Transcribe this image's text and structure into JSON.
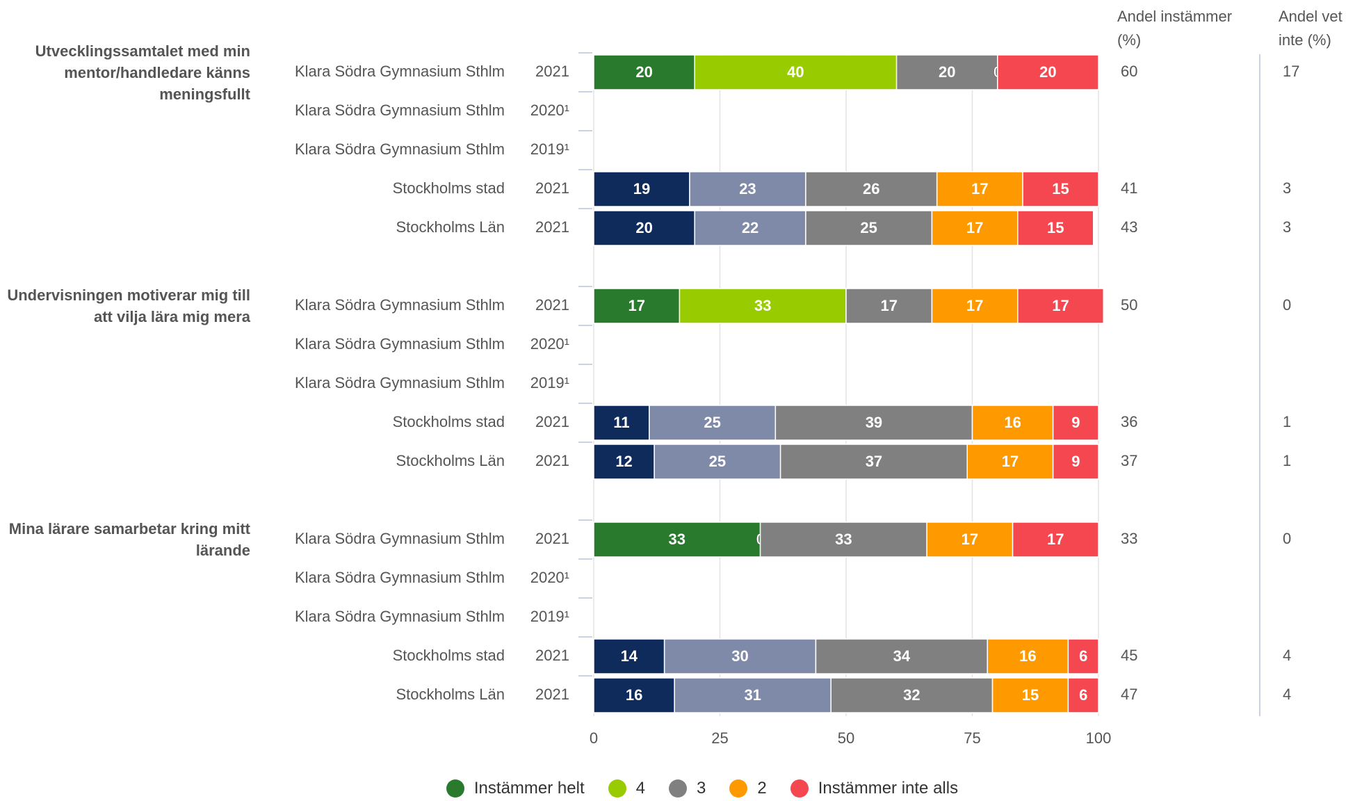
{
  "chart_data": {
    "type": "stacked_bar_horizontal",
    "xlim": [
      0,
      100
    ],
    "xticks": [
      0,
      25,
      50,
      75,
      100
    ],
    "grid": true,
    "legend": "bottom",
    "column_headers": [
      "Andel instämmer (%)",
      "Andel vet inte (%)"
    ],
    "series": [
      {
        "name": "Instämmer helt",
        "color": "#2a7a2e"
      },
      {
        "name": "4",
        "color": "#99cc00"
      },
      {
        "name": "3",
        "color": "#808080"
      },
      {
        "name": "2",
        "color": "#ff9900"
      },
      {
        "name": "Instämmer inte alls",
        "color": "#f5474f"
      }
    ],
    "groups": [
      {
        "label": "Utvecklingssamtalet med min mentor/handledare känns meningsfullt",
        "rows": [
          {
            "name": "Klara Södra Gymnasium Sthlm",
            "year": "2021",
            "values": [
              20,
              40,
              20,
              0,
              20
            ],
            "colors": [
              "#2a7a2e",
              "#99cc00",
              "#808080",
              "#ff9900",
              "#f5474f"
            ],
            "andel_instammer": 60,
            "andel_vet_inte": 17
          },
          {
            "name": "Klara Södra Gymnasium Sthlm",
            "year": "2020¹",
            "values": [
              null,
              null,
              null,
              null,
              null
            ]
          },
          {
            "name": "Klara Södra Gymnasium Sthlm",
            "year": "2019¹",
            "values": [
              null,
              null,
              null,
              null,
              null
            ]
          },
          {
            "name": "Stockholms stad",
            "year": "2021",
            "values": [
              19,
              23,
              26,
              17,
              15
            ],
            "colors": [
              "#0e2b5c",
              "#7f8aa8",
              "#808080",
              "#ff9900",
              "#f5474f"
            ],
            "andel_instammer": 41,
            "andel_vet_inte": 3
          },
          {
            "name": "Stockholms Län",
            "year": "2021",
            "values": [
              20,
              22,
              25,
              17,
              15
            ],
            "colors": [
              "#0e2b5c",
              "#7f8aa8",
              "#808080",
              "#ff9900",
              "#f5474f"
            ],
            "andel_instammer": 43,
            "andel_vet_inte": 3
          }
        ]
      },
      {
        "label": "Undervisningen motiverar mig till att vilja lära mig mera",
        "rows": [
          {
            "name": "Klara Södra Gymnasium Sthlm",
            "year": "2021",
            "values": [
              17,
              33,
              17,
              17,
              17
            ],
            "colors": [
              "#2a7a2e",
              "#99cc00",
              "#808080",
              "#ff9900",
              "#f5474f"
            ],
            "andel_instammer": 50,
            "andel_vet_inte": 0
          },
          {
            "name": "Klara Södra Gymnasium Sthlm",
            "year": "2020¹",
            "values": [
              null,
              null,
              null,
              null,
              null
            ]
          },
          {
            "name": "Klara Södra Gymnasium Sthlm",
            "year": "2019¹",
            "values": [
              null,
              null,
              null,
              null,
              null
            ]
          },
          {
            "name": "Stockholms stad",
            "year": "2021",
            "values": [
              11,
              25,
              39,
              16,
              9
            ],
            "colors": [
              "#0e2b5c",
              "#7f8aa8",
              "#808080",
              "#ff9900",
              "#f5474f"
            ],
            "andel_instammer": 36,
            "andel_vet_inte": 1
          },
          {
            "name": "Stockholms Län",
            "year": "2021",
            "values": [
              12,
              25,
              37,
              17,
              9
            ],
            "colors": [
              "#0e2b5c",
              "#7f8aa8",
              "#808080",
              "#ff9900",
              "#f5474f"
            ],
            "andel_instammer": 37,
            "andel_vet_inte": 1
          }
        ]
      },
      {
        "label": "Mina lärare samarbetar kring mitt lärande",
        "rows": [
          {
            "name": "Klara Södra Gymnasium Sthlm",
            "year": "2021",
            "values": [
              33,
              0,
              33,
              17,
              17
            ],
            "colors": [
              "#2a7a2e",
              "#99cc00",
              "#808080",
              "#ff9900",
              "#f5474f"
            ],
            "andel_instammer": 33,
            "andel_vet_inte": 0
          },
          {
            "name": "Klara Södra Gymnasium Sthlm",
            "year": "2020¹",
            "values": [
              null,
              null,
              null,
              null,
              null
            ]
          },
          {
            "name": "Klara Södra Gymnasium Sthlm",
            "year": "2019¹",
            "values": [
              null,
              null,
              null,
              null,
              null
            ]
          },
          {
            "name": "Stockholms stad",
            "year": "2021",
            "values": [
              14,
              30,
              34,
              16,
              6
            ],
            "colors": [
              "#0e2b5c",
              "#7f8aa8",
              "#808080",
              "#ff9900",
              "#f5474f"
            ],
            "andel_instammer": 45,
            "andel_vet_inte": 4
          },
          {
            "name": "Stockholms Län",
            "year": "2021",
            "values": [
              16,
              31,
              32,
              15,
              6
            ],
            "colors": [
              "#0e2b5c",
              "#7f8aa8",
              "#808080",
              "#ff9900",
              "#f5474f"
            ],
            "andel_instammer": 47,
            "andel_vet_inte": 4
          }
        ]
      }
    ]
  }
}
